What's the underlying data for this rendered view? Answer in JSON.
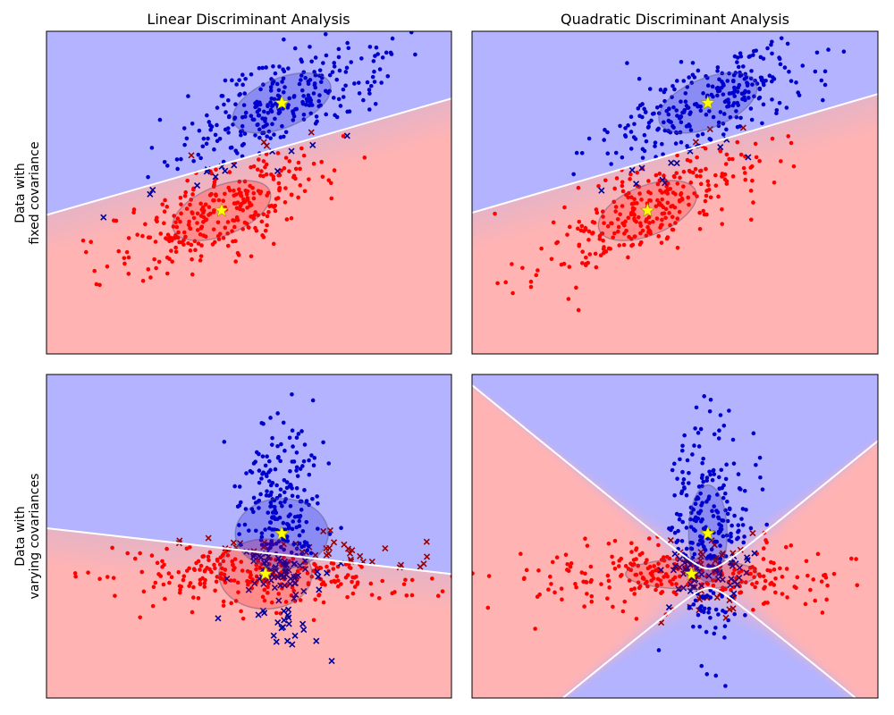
{
  "figure": {
    "suptitle_fragments": [
      "ysis",
      "(",
      "a",
      "ysis"
    ],
    "column_titles": [
      "Linear Discriminant Analysis",
      "Quadratic Discriminant Analysis"
    ],
    "row_labels": [
      [
        "Data with",
        "fixed covariance"
      ],
      [
        "Data with",
        "varying covariances"
      ]
    ]
  },
  "colors": {
    "class0": "#ff0000",
    "class0_misclassified": "#990000",
    "class1": "#0000cc",
    "class1_misclassified": "#000099",
    "region0": "#ffb3b3",
    "region1": "#b3b3ff",
    "boundary": "#ffffff",
    "means": "#ffff00"
  },
  "chart_data": [
    {
      "type": "scatter",
      "panel": "fixed-lda",
      "column_title": "Linear Discriminant Analysis",
      "row_label": "Data with fixed covariance",
      "axes": {
        "xlim": [
          -3.2,
          4.2
        ],
        "ylim": [
          -3.2,
          4.0
        ],
        "ticks": "none",
        "grid": false
      },
      "series": [
        {
          "role": "class0",
          "mean": [
            0.0,
            0.0
          ],
          "cov": [
            [
              1.0,
              0.5
            ],
            [
              0.5,
              0.5
            ]
          ],
          "n_points": 300,
          "marker": "dot"
        },
        {
          "role": "class1",
          "mean": [
            1.1,
            2.4
          ],
          "cov": [
            [
              1.0,
              0.5
            ],
            [
              0.5,
              0.5
            ]
          ],
          "n_points": 300,
          "marker": "dot"
        }
      ],
      "misclassified_marker": "x",
      "boundary": {
        "kind": "line",
        "points": [
          [
            -3.2,
            -0.1
          ],
          [
            4.2,
            2.5
          ]
        ]
      },
      "ellipses": [
        {
          "center": [
            0.0,
            0.0
          ],
          "angle_deg": 22,
          "semi_axes": [
            0.95,
            0.55
          ]
        },
        {
          "center": [
            1.1,
            2.4
          ],
          "angle_deg": 22,
          "semi_axes": [
            0.95,
            0.55
          ]
        }
      ],
      "means": [
        [
          0.0,
          0.0
        ],
        [
          1.1,
          2.4
        ]
      ]
    },
    {
      "type": "scatter",
      "panel": "fixed-qda",
      "column_title": "Quadratic Discriminant Analysis",
      "row_label": "Data with fixed covariance",
      "axes": {
        "xlim": [
          -3.2,
          4.2
        ],
        "ylim": [
          -3.2,
          4.0
        ],
        "ticks": "none",
        "grid": false
      },
      "series": [
        {
          "role": "class0",
          "mean": [
            0.0,
            0.0
          ],
          "cov": [
            [
              1.0,
              0.5
            ],
            [
              0.5,
              0.5
            ]
          ],
          "n_points": 300,
          "marker": "dot"
        },
        {
          "role": "class1",
          "mean": [
            1.1,
            2.4
          ],
          "cov": [
            [
              1.0,
              0.5
            ],
            [
              0.5,
              0.5
            ]
          ],
          "n_points": 300,
          "marker": "dot"
        }
      ],
      "misclassified_marker": "x",
      "boundary": {
        "kind": "line",
        "points": [
          [
            -3.2,
            -0.05
          ],
          [
            4.2,
            2.6
          ]
        ]
      },
      "ellipses": [
        {
          "center": [
            0.0,
            0.0
          ],
          "angle_deg": 22,
          "semi_axes": [
            0.95,
            0.55
          ]
        },
        {
          "center": [
            1.1,
            2.4
          ],
          "angle_deg": 22,
          "semi_axes": [
            0.95,
            0.55
          ]
        }
      ],
      "means": [
        [
          0.0,
          0.0
        ],
        [
          1.1,
          2.4
        ]
      ]
    },
    {
      "type": "scatter",
      "panel": "varying-lda",
      "column_title": "Linear Discriminant Analysis",
      "row_label": "Data with varying covariances",
      "axes": {
        "xlim": [
          -4.0,
          3.4
        ],
        "ylim": [
          -2.3,
          3.7
        ],
        "ticks": "none",
        "grid": false
      },
      "series": [
        {
          "role": "class0",
          "mean": [
            0.0,
            0.0
          ],
          "cov": [
            [
              2.0,
              0.0
            ],
            [
              0.0,
              0.1
            ]
          ],
          "n_points": 300,
          "marker": "dot"
        },
        {
          "role": "class1",
          "mean": [
            0.3,
            0.75
          ],
          "cov": [
            [
              0.15,
              0.0
            ],
            [
              0.0,
              1.0
            ]
          ],
          "n_points": 300,
          "marker": "dot"
        }
      ],
      "misclassified_marker": "x",
      "boundary": {
        "kind": "line",
        "points": [
          [
            -4.0,
            0.85
          ],
          [
            3.4,
            0.0
          ]
        ]
      },
      "ellipses": [
        {
          "center": [
            0.0,
            0.0
          ],
          "angle_deg": 0,
          "semi_axes": [
            0.85,
            0.65
          ]
        },
        {
          "center": [
            0.3,
            0.75
          ],
          "angle_deg": 0,
          "semi_axes": [
            0.85,
            0.65
          ]
        }
      ],
      "means": [
        [
          0.0,
          0.0
        ],
        [
          0.3,
          0.75
        ]
      ]
    },
    {
      "type": "scatter",
      "panel": "varying-qda",
      "column_title": "Quadratic Discriminant Analysis",
      "row_label": "Data with varying covariances",
      "axes": {
        "xlim": [
          -4.0,
          3.4
        ],
        "ylim": [
          -2.3,
          3.7
        ],
        "ticks": "none",
        "grid": false
      },
      "series": [
        {
          "role": "class0",
          "mean": [
            0.0,
            0.0
          ],
          "cov": [
            [
              2.0,
              0.0
            ],
            [
              0.0,
              0.1
            ]
          ],
          "n_points": 300,
          "marker": "dot"
        },
        {
          "role": "class1",
          "mean": [
            0.3,
            0.75
          ],
          "cov": [
            [
              0.15,
              0.0
            ],
            [
              0.0,
              1.0
            ]
          ],
          "n_points": 300,
          "marker": "dot"
        }
      ],
      "misclassified_marker": "x",
      "boundary": {
        "kind": "hyperbola"
      },
      "ellipses": [
        {
          "center": [
            0.0,
            0.0
          ],
          "angle_deg": 0,
          "semi_axes": [
            1.2,
            0.28
          ]
        },
        {
          "center": [
            0.3,
            0.75
          ],
          "angle_deg": 0,
          "semi_axes": [
            0.35,
            0.9
          ]
        }
      ],
      "means": [
        [
          0.0,
          0.0
        ],
        [
          0.3,
          0.75
        ]
      ]
    }
  ]
}
